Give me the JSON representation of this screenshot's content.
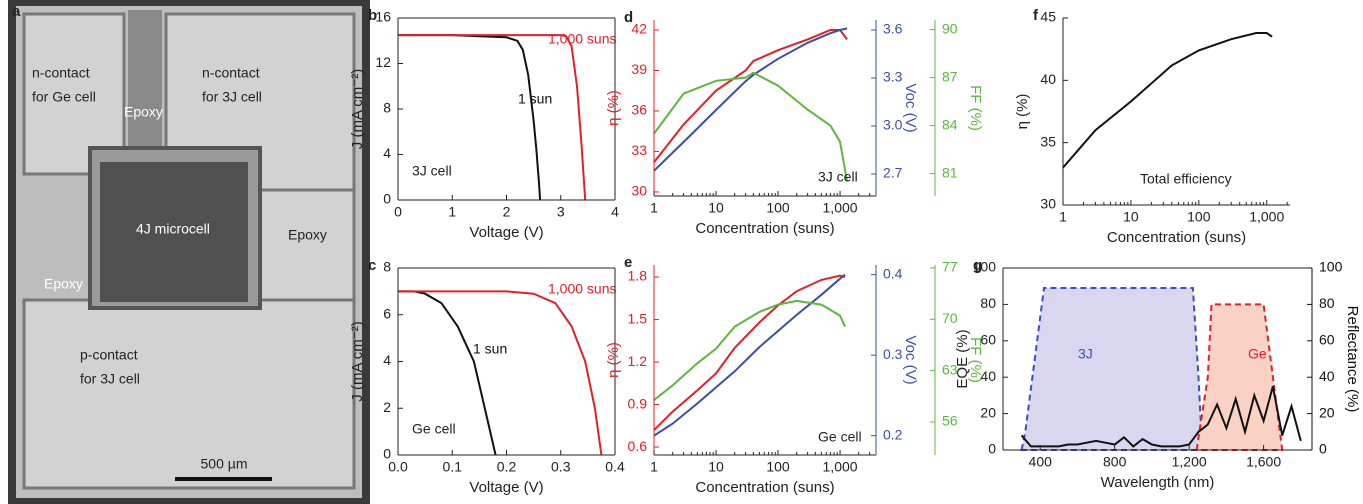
{
  "micrograph": {
    "panel": "a",
    "labels": [
      {
        "lines": [
          "n-contact",
          "for Ge cell"
        ]
      },
      {
        "lines": [
          "n-contact",
          "for 3J cell"
        ]
      },
      {
        "lines": [
          "Epoxy"
        ]
      },
      {
        "lines": [
          "4J microcell"
        ]
      },
      {
        "lines": [
          "Epoxy"
        ]
      },
      {
        "lines": [
          "Epoxy"
        ]
      },
      {
        "lines": [
          "p-contact",
          "for 3J cell"
        ]
      }
    ],
    "scale_bar": "500 µm"
  },
  "chart_data": [
    {
      "type": "line",
      "panel": "b",
      "xlabel": "Voltage (V)",
      "ylabel": "J (mA cm⁻²)",
      "xlim": [
        0,
        4
      ],
      "xticks": [
        0,
        1,
        2,
        3,
        4
      ],
      "ylim": [
        0,
        16
      ],
      "yticks": [
        0,
        4,
        8,
        12,
        16
      ],
      "annotations": [
        "3J cell"
      ],
      "series": [
        {
          "name": "1 sun",
          "color": "#111111",
          "x": [
            0,
            0.5,
            1,
            1.5,
            2,
            2.2,
            2.3,
            2.4,
            2.5,
            2.55,
            2.6,
            2.62
          ],
          "values": [
            14.5,
            14.5,
            14.5,
            14.4,
            14.3,
            14.0,
            13.2,
            11,
            7,
            4.5,
            1.5,
            0
          ]
        },
        {
          "name": "1,000 suns",
          "color": "#e0202a",
          "x": [
            0,
            0.5,
            1,
            1.5,
            2,
            2.5,
            3,
            3.1,
            3.2,
            3.3,
            3.38,
            3.45
          ],
          "values": [
            14.5,
            14.5,
            14.5,
            14.5,
            14.5,
            14.5,
            14.5,
            14.4,
            13.5,
            10,
            5,
            0
          ]
        }
      ]
    },
    {
      "type": "line",
      "panel": "c",
      "xlabel": "Voltage (V)",
      "ylabel": "J (mA cm⁻²)",
      "xlim": [
        0,
        0.4
      ],
      "xticks": [
        {
          "value": 0,
          "label": "0.0"
        },
        0.1,
        0.2,
        0.3,
        0.4
      ],
      "ylim": [
        0,
        8
      ],
      "yticks": [
        0,
        2,
        4,
        6,
        8
      ],
      "annotations": [
        "Ge cell"
      ],
      "series": [
        {
          "name": "1 sun",
          "color": "#111111",
          "x": [
            0,
            0.03,
            0.05,
            0.08,
            0.11,
            0.14,
            0.16,
            0.18
          ],
          "values": [
            7,
            7,
            6.9,
            6.5,
            5.5,
            4,
            2,
            0
          ]
        },
        {
          "name": "1,000 suns",
          "color": "#e0202a",
          "x": [
            0,
            0.1,
            0.2,
            0.25,
            0.29,
            0.32,
            0.345,
            0.363,
            0.375
          ],
          "values": [
            7,
            7,
            7,
            6.9,
            6.5,
            5.5,
            4,
            2,
            0
          ]
        }
      ]
    },
    {
      "type": "line",
      "panel": "d",
      "xlabel": "Concentration (suns)",
      "ylabel": "η (%)",
      "y2label": "Voc (V)",
      "y3label": "FF (%)",
      "xscale": "log",
      "xlim": [
        1,
        3800
      ],
      "xticks": [
        1,
        10,
        100,
        {
          "value": 1000,
          "label": "1,000"
        }
      ],
      "ylim": [
        29.7,
        42.74
      ],
      "yticks": [
        30,
        33,
        36,
        39,
        42
      ],
      "y2lim": [
        2.5625,
        3.6625
      ],
      "y2ticks": [
        2.7,
        {
          "value": 3.0,
          "label": "3.0"
        },
        3.3,
        3.6
      ],
      "y3lim": [
        79.6,
        90.6
      ],
      "y3ticks": [
        81,
        84,
        87,
        90
      ],
      "annotations": [
        "3J cell"
      ],
      "series": [
        {
          "color": "#e0202a",
          "x": [
            1,
            3,
            10,
            30,
            40,
            100,
            300,
            700,
            1000,
            1300
          ],
          "values": [
            32.2,
            35,
            37.5,
            39,
            39.7,
            40.5,
            41.3,
            42,
            42,
            41.3
          ]
        },
        {
          "color": "#3a4fa0",
          "axis": "y2",
          "x": [
            1,
            3,
            10,
            30,
            40,
            100,
            300,
            700,
            1000,
            1300
          ],
          "values": [
            2.72,
            2.9,
            3.1,
            3.28,
            3.32,
            3.42,
            3.52,
            3.58,
            3.6,
            3.61
          ]
        },
        {
          "color": "#5cb83a",
          "axis": "y3",
          "x": [
            1,
            3,
            10,
            30,
            40,
            100,
            300,
            700,
            1000,
            1300
          ],
          "values": [
            83.5,
            86,
            86.8,
            87,
            87.3,
            86.5,
            85,
            84,
            83,
            80.5
          ]
        }
      ]
    },
    {
      "type": "line",
      "panel": "e",
      "xlabel": "Concentration (suns)",
      "ylabel": "η (%)",
      "y2label": "Voc (V)",
      "y3label": "FF (%)",
      "xscale": "log",
      "xlim": [
        1,
        3800
      ],
      "xticks": [
        1,
        10,
        100,
        {
          "value": 1000,
          "label": "1,000"
        }
      ],
      "ylim": [
        0.544,
        1.885
      ],
      "yticks": [
        0.6,
        0.9,
        1.2,
        1.5,
        1.8
      ],
      "y2lim": [
        0.176,
        0.412
      ],
      "y2ticks": [
        0.2,
        0.3,
        0.4
      ],
      "y3lim": [
        51.5,
        77.4
      ],
      "y3ticks": [
        56,
        63,
        70,
        77
      ],
      "annotations": [
        "Ge cell"
      ],
      "series": [
        {
          "color": "#e0202a",
          "x": [
            1,
            2,
            5,
            10,
            20,
            50,
            100,
            200,
            500,
            1000,
            1200
          ],
          "values": [
            0.72,
            0.85,
            1.0,
            1.12,
            1.3,
            1.48,
            1.6,
            1.7,
            1.78,
            1.81,
            1.8
          ]
        },
        {
          "color": "#3a4fa0",
          "axis": "y2",
          "x": [
            1,
            2,
            5,
            10,
            20,
            50,
            100,
            200,
            500,
            1000,
            1200
          ],
          "values": [
            0.2,
            0.215,
            0.24,
            0.26,
            0.28,
            0.31,
            0.33,
            0.35,
            0.375,
            0.395,
            0.4
          ]
        },
        {
          "color": "#5cb83a",
          "axis": "y3",
          "x": [
            1,
            2,
            5,
            10,
            20,
            50,
            100,
            200,
            500,
            1000,
            1200
          ],
          "values": [
            59,
            61,
            64,
            66,
            69,
            71,
            72,
            72.5,
            72,
            70.5,
            69
          ]
        }
      ]
    },
    {
      "type": "line",
      "panel": "f",
      "xlabel": "Concentration (suns)",
      "ylabel": "η (%)",
      "xscale": "log",
      "xlim": [
        1,
        2200
      ],
      "xticks": [
        1,
        10,
        100,
        {
          "value": 1000,
          "label": "1,000"
        }
      ],
      "ylim": [
        30,
        45
      ],
      "yticks": [
        30,
        35,
        40,
        45
      ],
      "annotations": [
        "Total efficiency"
      ],
      "series": [
        {
          "color": "#111111",
          "x": [
            1,
            3,
            10,
            40,
            100,
            300,
            700,
            1000,
            1200
          ],
          "values": [
            33,
            36,
            38.3,
            41.2,
            42.4,
            43.3,
            43.8,
            43.8,
            43.5
          ]
        }
      ]
    },
    {
      "type": "line",
      "panel": "g",
      "xlabel": "Wavelength (nm)",
      "ylabel": "EQE (%)",
      "y2label": "Reflectance (%)",
      "xlim": [
        200,
        1860
      ],
      "xticks": [
        400,
        800,
        {
          "value": 1200,
          "label": "1,200"
        },
        {
          "value": 1600,
          "label": "1,600"
        }
      ],
      "ylim": [
        0,
        100
      ],
      "yticks": [
        0,
        20,
        40,
        60,
        80,
        100
      ],
      "y2lim": [
        0,
        100
      ],
      "y2ticks": [
        0,
        20,
        40,
        60,
        80,
        100
      ],
      "series": [
        {
          "name": "3J",
          "style": "area",
          "color": "#3a4fbf",
          "fill": "#d9d6ef",
          "x": [
            300,
            320,
            420,
            1220,
            1250,
            1270
          ],
          "values": [
            0,
            10,
            89,
            89,
            40,
            0
          ]
        },
        {
          "name": "Ge",
          "style": "area",
          "color": "#e0202a",
          "fill": "#f9d2c4",
          "x": [
            1240,
            1300,
            1320,
            1600,
            1650,
            1700
          ],
          "values": [
            0,
            40,
            80,
            80,
            40,
            0
          ]
        },
        {
          "color": "#111111",
          "axis": "y2",
          "x": [
            300,
            350,
            400,
            450,
            500,
            550,
            600,
            650,
            700,
            750,
            800,
            850,
            900,
            950,
            1000,
            1050,
            1100,
            1150,
            1200,
            1250,
            1300,
            1350,
            1400,
            1450,
            1500,
            1550,
            1600,
            1650,
            1700,
            1750,
            1800
          ],
          "values": [
            8,
            2,
            2,
            2,
            2,
            3,
            3,
            4,
            5,
            4,
            3,
            7,
            2,
            6,
            3,
            2,
            2,
            2,
            3,
            10,
            14,
            25,
            12,
            28,
            10,
            30,
            16,
            35,
            8,
            24,
            5
          ]
        }
      ]
    }
  ]
}
